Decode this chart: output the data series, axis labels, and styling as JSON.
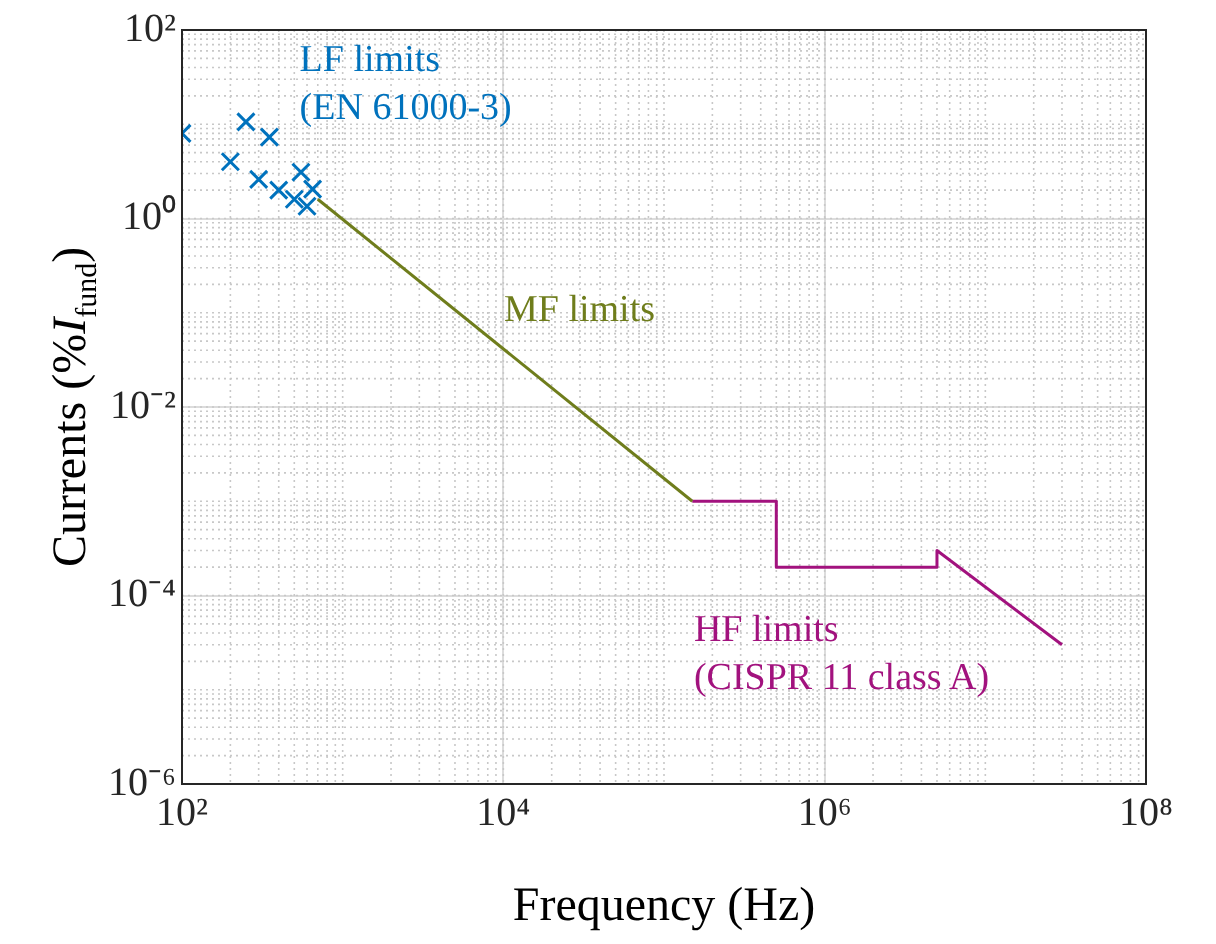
{
  "chart_data": {
    "type": "line",
    "xlabel": "Frequency (Hz)",
    "ylabel": "Currents (%I$_{fund}$)",
    "log": "xy",
    "grid": true,
    "legend": false,
    "xlim": [
      100,
      100000000
    ],
    "ylim": [
      1e-06,
      100
    ],
    "xticks": [
      {
        "value": 100,
        "label": "10²"
      },
      {
        "value": 10000,
        "label": "10⁴"
      },
      {
        "value": 1000000,
        "label": "10⁶"
      },
      {
        "value": 100000000,
        "label": "10⁸"
      }
    ],
    "yticks": [
      {
        "value": 1e-06,
        "label": "10⁻⁶"
      },
      {
        "value": 0.0001,
        "label": "10⁻⁴"
      },
      {
        "value": 0.01,
        "label": "10⁻²"
      },
      {
        "value": 1,
        "label": "10⁰"
      },
      {
        "value": 100,
        "label": "10²"
      }
    ],
    "series": [
      {
        "type": "scatter",
        "marker": "cross",
        "color": "#0072bd",
        "x": [
          100,
          200,
          250,
          300,
          350,
          400,
          500,
          550,
          600,
          650
        ],
        "values": [
          8,
          4,
          10.6,
          2.6,
          7.3,
          2,
          1.6,
          3.1,
          1.35,
          2.05
        ]
      },
      {
        "type": "line",
        "color": "#6f7d1c",
        "x": [
          700,
          150000
        ],
        "values": [
          1.6,
          0.001
        ]
      },
      {
        "type": "line",
        "color": "#a2127e",
        "x": [
          150000,
          500000,
          500000,
          5000000,
          5000000,
          30000000
        ],
        "values": [
          0.001,
          0.001,
          0.0002,
          0.0002,
          0.0003,
          3e-05
        ]
      }
    ],
    "annotations": [
      "LF limits\n(EN 61000-3)",
      "MF limits",
      "HF limits\n(CISPR 11 class A)"
    ]
  }
}
